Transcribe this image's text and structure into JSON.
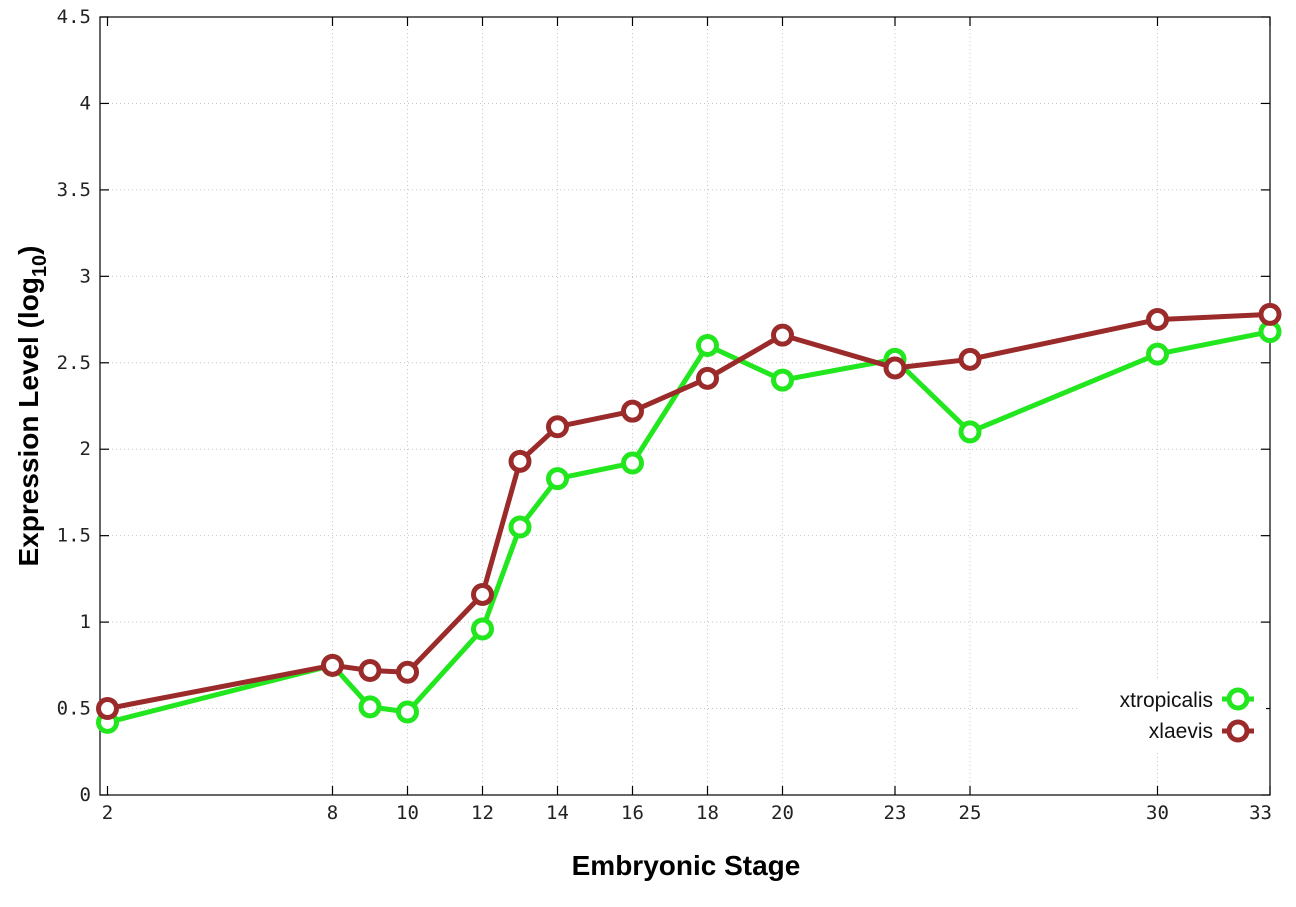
{
  "chart_data": {
    "type": "line",
    "xlabel": "Embryonic Stage",
    "ylabel_main": "Expression Level (log",
    "ylabel_sub": "10",
    "ylabel_close": ")",
    "xlim": [
      1.8,
      33
    ],
    "ylim": [
      0,
      4.5
    ],
    "x_ticks": [
      2,
      8,
      10,
      12,
      14,
      16,
      18,
      20,
      23,
      25,
      30,
      33
    ],
    "x_tick_labels": [
      "2",
      "8",
      "10",
      "12",
      "14",
      "16",
      "18",
      "20",
      "23",
      "25",
      "30",
      "33"
    ],
    "y_ticks": [
      0,
      0.5,
      1,
      1.5,
      2,
      2.5,
      3,
      3.5,
      4,
      4.5
    ],
    "y_tick_labels": [
      "0",
      "0.5",
      "1",
      "1.5",
      "2",
      "2.5",
      "3",
      "3.5",
      "4",
      "4.5"
    ],
    "grid": true,
    "legend_position": "bottom-right",
    "x": [
      2,
      8,
      9,
      10,
      12,
      13,
      14,
      16,
      18,
      20,
      23,
      25,
      30,
      33
    ],
    "series": [
      {
        "name": "xtropicalis",
        "color": "#22e61e",
        "values": [
          0.42,
          0.75,
          0.51,
          0.48,
          0.96,
          1.55,
          1.83,
          1.92,
          2.6,
          2.4,
          2.52,
          2.1,
          2.55,
          2.68
        ]
      },
      {
        "name": "xlaevis",
        "color": "#9b2b2b",
        "values": [
          0.5,
          0.75,
          0.72,
          0.71,
          1.16,
          1.93,
          2.13,
          2.22,
          2.41,
          2.66,
          2.47,
          2.52,
          2.75,
          2.78
        ]
      }
    ]
  }
}
